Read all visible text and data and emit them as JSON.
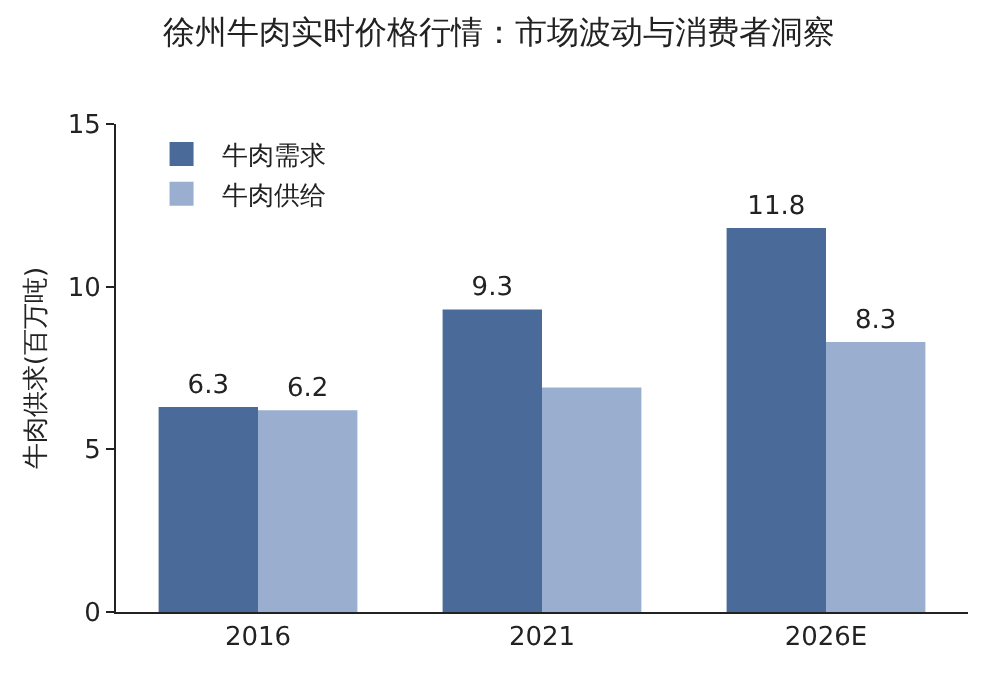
{
  "chart_data": {
    "type": "bar",
    "title": "徐州牛肉实时价格行情：市场波动与消费者洞察",
    "ylabel": "牛肉供求(百万吨)",
    "categories": [
      "2016",
      "2021",
      "2026E"
    ],
    "series": [
      {
        "name": "牛肉需求",
        "color": "#4a6a9a",
        "values": [
          6.3,
          9.3,
          11.8
        ],
        "value_labels": [
          "6.3",
          "9.3",
          "11.8"
        ]
      },
      {
        "name": "牛肉供给",
        "color": "#9aafd0",
        "values": [
          6.2,
          6.9,
          8.3
        ],
        "value_labels": [
          "6.2",
          null,
          "8.3"
        ]
      }
    ],
    "ylim": [
      0,
      15
    ],
    "yticks": [
      0,
      5,
      10,
      15
    ],
    "grid": false,
    "legend": "top left"
  }
}
